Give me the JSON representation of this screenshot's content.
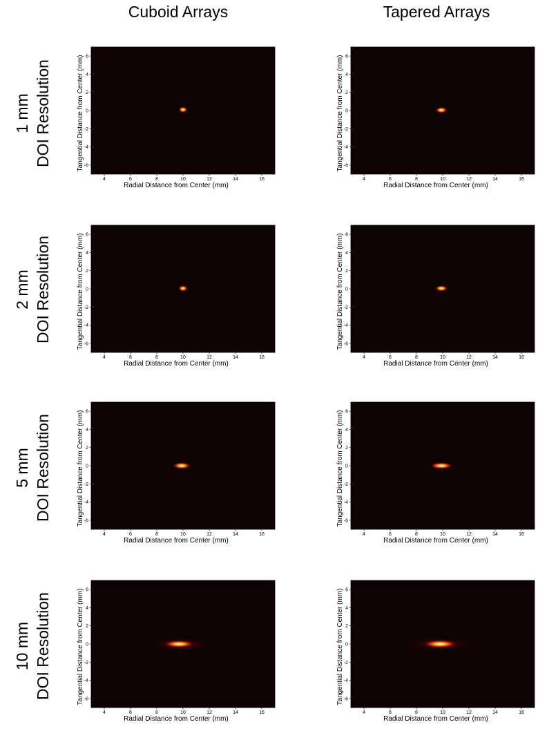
{
  "columns": [
    "Cuboid Arrays",
    "Tapered Arrays"
  ],
  "rows": [
    {
      "value": "1 mm",
      "label": "DOI Resolution"
    },
    {
      "value": "2 mm",
      "label": "DOI Resolution"
    },
    {
      "value": "5 mm",
      "label": "DOI Resolution"
    },
    {
      "value": "10 mm",
      "label": "DOI Resolution"
    }
  ],
  "chart_data": [
    {
      "type": "heatmap",
      "column": "Cuboid Arrays",
      "row": "1 mm DOI Resolution",
      "xlabel": "Radial Distance from Center (mm)",
      "ylabel": "Tangential Distance from Center (mm)",
      "xlim": [
        3,
        17
      ],
      "ylim": [
        -7,
        7
      ],
      "xticks": [
        4,
        6,
        8,
        10,
        12,
        14,
        16
      ],
      "yticks": [
        -6,
        -4,
        -2,
        0,
        2,
        4,
        6
      ],
      "colormap": "hot",
      "background": "#0d0303",
      "spot": {
        "x": 10,
        "y": 0.1,
        "width_x": 0.3,
        "width_y": 0.3,
        "tail": 0
      }
    },
    {
      "type": "heatmap",
      "column": "Tapered Arrays",
      "row": "1 mm DOI Resolution",
      "xlabel": "Radial Distance from Center (mm)",
      "ylabel": "Tangential Distance from Center (mm)",
      "xlim": [
        3,
        17
      ],
      "ylim": [
        -7,
        7
      ],
      "xticks": [
        4,
        6,
        8,
        10,
        12,
        14,
        16
      ],
      "yticks": [
        -6,
        -4,
        -2,
        0,
        2,
        4,
        6
      ],
      "colormap": "hot",
      "background": "#0d0303",
      "spot": {
        "x": 9.9,
        "y": 0.05,
        "width_x": 0.4,
        "width_y": 0.3,
        "tail": 0
      }
    },
    {
      "type": "heatmap",
      "column": "Cuboid Arrays",
      "row": "2 mm DOI Resolution",
      "xlabel": "Radial Distance from Center (mm)",
      "ylabel": "Tangential Distance from Center (mm)",
      "xlim": [
        3,
        17
      ],
      "ylim": [
        -7,
        7
      ],
      "xticks": [
        4,
        6,
        8,
        10,
        12,
        14,
        16
      ],
      "yticks": [
        -6,
        -4,
        -2,
        0,
        2,
        4,
        6
      ],
      "colormap": "hot",
      "background": "#0d0303",
      "spot": {
        "x": 10,
        "y": 0.05,
        "width_x": 0.32,
        "width_y": 0.3,
        "tail": 0
      }
    },
    {
      "type": "heatmap",
      "column": "Tapered Arrays",
      "row": "2 mm DOI Resolution",
      "xlabel": "Radial Distance from Center (mm)",
      "ylabel": "Tangential Distance from Center (mm)",
      "xlim": [
        3,
        17
      ],
      "ylim": [
        -7,
        7
      ],
      "xticks": [
        4,
        6,
        8,
        10,
        12,
        14,
        16
      ],
      "yticks": [
        -6,
        -4,
        -2,
        0,
        2,
        4,
        6
      ],
      "colormap": "hot",
      "background": "#0d0303",
      "spot": {
        "x": 9.9,
        "y": 0.05,
        "width_x": 0.42,
        "width_y": 0.3,
        "tail": 0
      }
    },
    {
      "type": "heatmap",
      "column": "Cuboid Arrays",
      "row": "5 mm DOI Resolution",
      "xlabel": "Radial Distance from Center (mm)",
      "ylabel": "Tangential Distance from Center (mm)",
      "xlim": [
        3,
        17
      ],
      "ylim": [
        -7,
        7
      ],
      "xticks": [
        4,
        6,
        8,
        10,
        12,
        14,
        16
      ],
      "yticks": [
        -6,
        -4,
        -2,
        0,
        2,
        4,
        6
      ],
      "colormap": "hot",
      "background": "#0d0303",
      "spot": {
        "x": 9.9,
        "y": 0.0,
        "width_x": 0.6,
        "width_y": 0.32,
        "tail": 0
      }
    },
    {
      "type": "heatmap",
      "column": "Tapered Arrays",
      "row": "5 mm DOI Resolution",
      "xlabel": "Radial Distance from Center (mm)",
      "ylabel": "Tangential Distance from Center (mm)",
      "xlim": [
        3,
        17
      ],
      "ylim": [
        -7,
        7
      ],
      "xticks": [
        4,
        6,
        8,
        10,
        12,
        14,
        16
      ],
      "yticks": [
        -6,
        -4,
        -2,
        0,
        2,
        4,
        6
      ],
      "colormap": "hot",
      "background": "#0d0303",
      "spot": {
        "x": 9.9,
        "y": 0.0,
        "width_x": 0.75,
        "width_y": 0.32,
        "tail": 0
      }
    },
    {
      "type": "heatmap",
      "column": "Cuboid Arrays",
      "row": "10 mm DOI Resolution",
      "xlabel": "Radial Distance from Center (mm)",
      "ylabel": "Tangential Distance from Center (mm)",
      "xlim": [
        3,
        17
      ],
      "ylim": [
        -7,
        7
      ],
      "xticks": [
        4,
        6,
        8,
        10,
        12,
        14,
        16
      ],
      "yticks": [
        -6,
        -4,
        -2,
        0,
        2,
        4,
        6
      ],
      "colormap": "hot",
      "background": "#0d0303",
      "spot": {
        "x": 9.7,
        "y": 0.0,
        "width_x": 1.0,
        "width_y": 0.35,
        "tail": 1
      }
    },
    {
      "type": "heatmap",
      "column": "Tapered Arrays",
      "row": "10 mm DOI Resolution",
      "xlabel": "Radial Distance from Center (mm)",
      "ylabel": "Tangential Distance from Center (mm)",
      "xlim": [
        3,
        17
      ],
      "ylim": [
        -7,
        7
      ],
      "xticks": [
        4,
        6,
        8,
        10,
        12,
        14,
        16
      ],
      "yticks": [
        -6,
        -4,
        -2,
        0,
        2,
        4,
        6
      ],
      "colormap": "hot",
      "background": "#0d0303",
      "spot": {
        "x": 9.8,
        "y": 0.0,
        "width_x": 1.1,
        "width_y": 0.38,
        "tail": 1
      }
    }
  ]
}
